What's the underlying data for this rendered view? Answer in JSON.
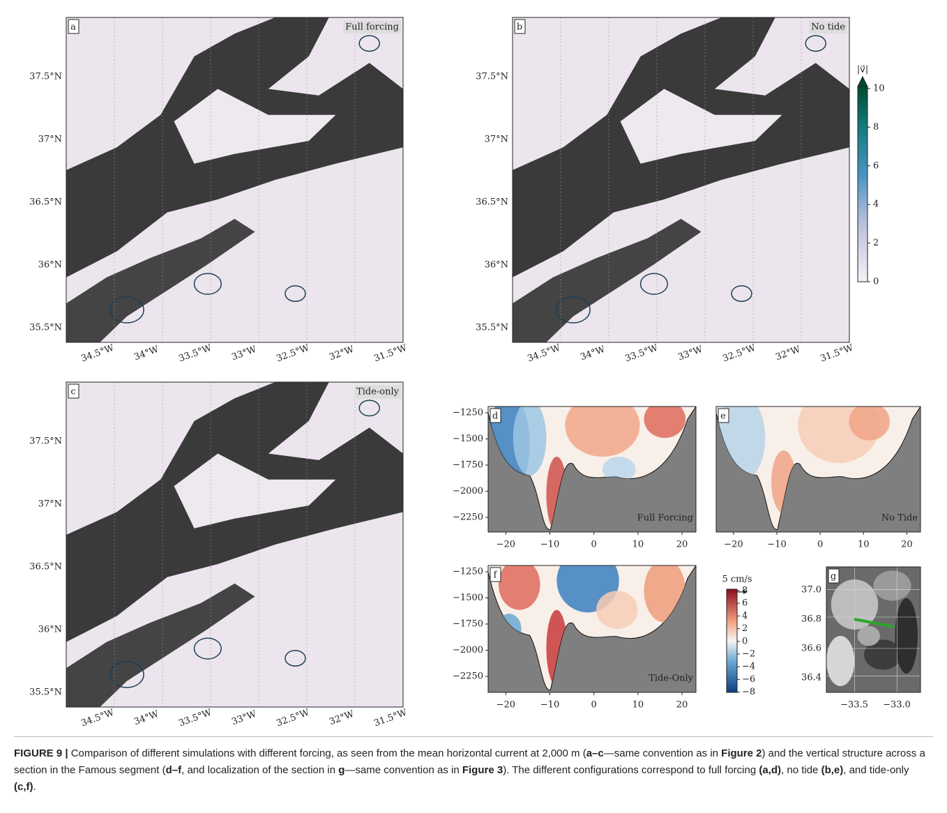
{
  "panels": {
    "a": {
      "letter": "a",
      "label": "Full forcing"
    },
    "b": {
      "letter": "b",
      "label": "No tide"
    },
    "c": {
      "letter": "c",
      "label": "Tide-only"
    },
    "d": {
      "letter": "d",
      "label": "Full Forcing"
    },
    "e": {
      "letter": "e",
      "label": "No Tide"
    },
    "f": {
      "letter": "f",
      "label": "Tide-Only"
    },
    "g": {
      "letter": "g"
    }
  },
  "map_axes": {
    "lat_labels": [
      "37.5°N",
      "37°N",
      "36.5°N",
      "36°N",
      "35.5°N"
    ],
    "lon_labels": [
      "34.5°W",
      "34°W",
      "33.5°W",
      "33°W",
      "32.5°W",
      "32°W",
      "31.5°W"
    ]
  },
  "speed_colorbar": {
    "title": "|v⃗|",
    "ticks": [
      "10",
      "8",
      "6",
      "4",
      "2",
      "0"
    ]
  },
  "section_axes": {
    "depth_labels": [
      "−1250",
      "−1500",
      "−1750",
      "−2000",
      "−2250"
    ],
    "distance_labels": [
      "−20",
      "−10",
      "0",
      "10",
      "20"
    ]
  },
  "scale_arrow": "5 cm/s",
  "section_colorbar": {
    "ticks": [
      "8",
      "6",
      "4",
      "2",
      "0",
      "−2",
      "−4",
      "−6",
      "−8"
    ]
  },
  "inset_axes": {
    "lat_labels": [
      "37.0",
      "36.8",
      "36.6",
      "36.4"
    ],
    "lon_labels": [
      "−33.5",
      "−33.0"
    ]
  },
  "caption": [
    {
      "text": "FIGURE 9 |",
      "bold": true
    },
    {
      "text": " Comparison of different simulations with different forcing, as seen from the mean horizontal current at 2,000 m (",
      "bold": false
    },
    {
      "text": "a–c",
      "bold": true
    },
    {
      "text": "—same convention as in ",
      "bold": false
    },
    {
      "text": "Figure 2",
      "bold": true
    },
    {
      "text": ") and the vertical structure across a section in the Famous segment (",
      "bold": false
    },
    {
      "text": "d–f",
      "bold": true
    },
    {
      "text": ", and localization of the section in ",
      "bold": false
    },
    {
      "text": "g",
      "bold": true
    },
    {
      "text": "—same convention as in ",
      "bold": false
    },
    {
      "text": "Figure 3",
      "bold": true
    },
    {
      "text": "). The different configurations correspond to full forcing ",
      "bold": false
    },
    {
      "text": "(a,d)",
      "bold": true
    },
    {
      "text": ", no tide ",
      "bold": false
    },
    {
      "text": "(b,e)",
      "bold": true
    },
    {
      "text": ", and tide-only ",
      "bold": false
    },
    {
      "text": "(c,f)",
      "bold": true
    },
    {
      "text": ".",
      "bold": false
    }
  ]
}
